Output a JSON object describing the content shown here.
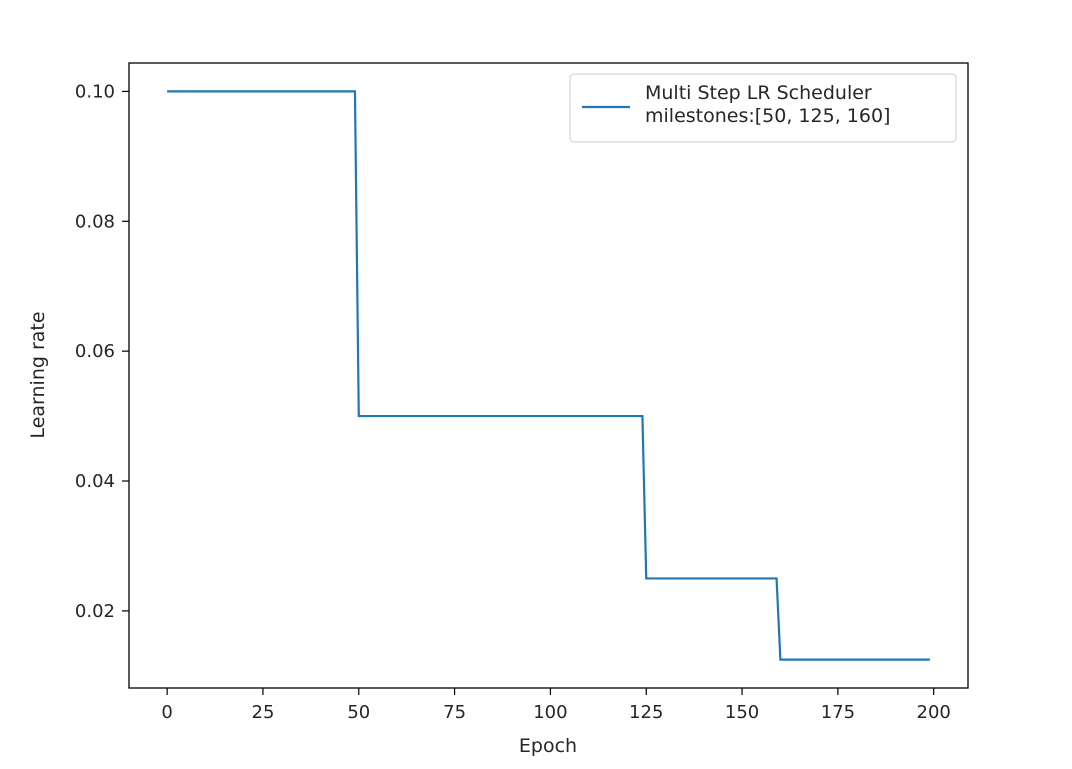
{
  "chart_data": {
    "type": "line",
    "title": "",
    "xlabel": "Epoch",
    "ylabel": "Learning rate",
    "xlim": [
      -9.95,
      208.95
    ],
    "ylim": [
      0.008125,
      0.104375
    ],
    "xticks": [
      0,
      25,
      50,
      75,
      100,
      125,
      150,
      175,
      200
    ],
    "xtick_labels": [
      "0",
      "25",
      "50",
      "75",
      "100",
      "125",
      "150",
      "175",
      "200"
    ],
    "yticks": [
      0.02,
      0.04,
      0.06,
      0.08,
      0.1
    ],
    "ytick_labels": [
      "0.02",
      "0.04",
      "0.06",
      "0.08",
      "0.10"
    ],
    "grid": false,
    "legend_position": "top-right",
    "series": [
      {
        "name": "Multi Step LR Scheduler\nmilestones:[50, 125, 160]",
        "color": "#1f77b4",
        "x": [
          0,
          49,
          50,
          124,
          125,
          159,
          160,
          199
        ],
        "y": [
          0.1,
          0.1,
          0.05,
          0.05,
          0.025,
          0.025,
          0.0125,
          0.0125
        ]
      }
    ]
  }
}
